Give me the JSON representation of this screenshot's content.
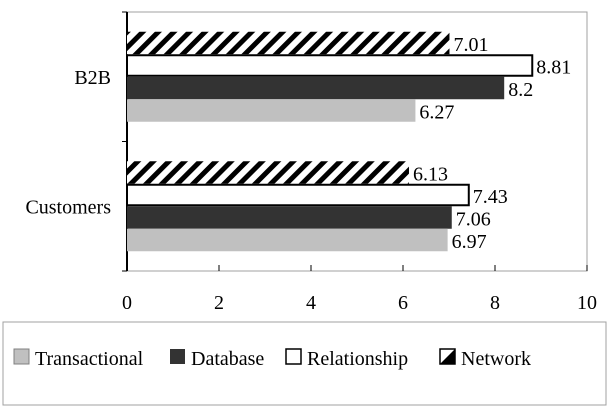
{
  "chart_data": {
    "type": "bar",
    "orientation": "horizontal",
    "title": "",
    "xlabel": "",
    "ylabel": "",
    "categories": [
      "Customers",
      "B2B"
    ],
    "xlim": [
      0,
      10
    ],
    "xticks": [
      0,
      2,
      4,
      6,
      8,
      10
    ],
    "grid": false,
    "legend_position": "bottom",
    "series": [
      {
        "name": "Transactional",
        "values": [
          6.97,
          6.27
        ],
        "color": "#c0c0c0",
        "pattern": "solid"
      },
      {
        "name": "Database",
        "values": [
          7.06,
          8.2
        ],
        "color": "#333333",
        "pattern": "solid"
      },
      {
        "name": "Relationship",
        "values": [
          7.43,
          8.81
        ],
        "color": "#ffffff",
        "pattern": "outline"
      },
      {
        "name": "Network",
        "values": [
          6.13,
          7.01
        ],
        "color": "#000000",
        "pattern": "diagonal-stripes"
      }
    ]
  }
}
